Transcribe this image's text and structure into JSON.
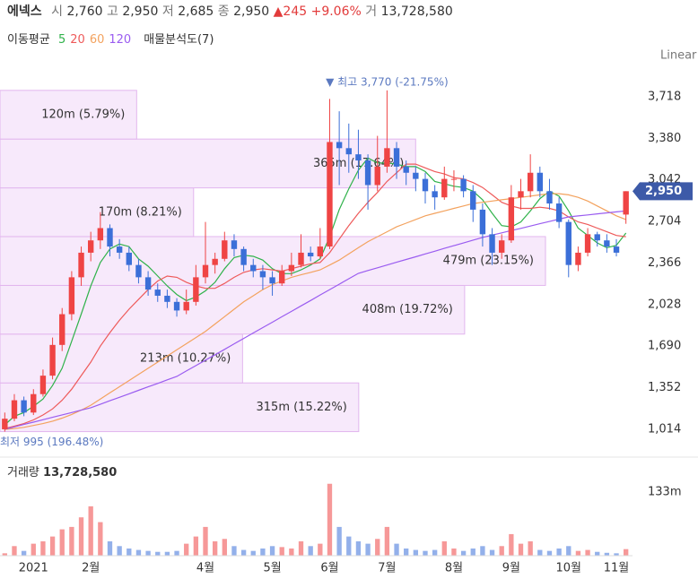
{
  "header": {
    "name": "에넥스",
    "items": [
      {
        "label": "시",
        "value": "2,760"
      },
      {
        "label": "고",
        "value": "2,950"
      },
      {
        "label": "저",
        "value": "2,685"
      },
      {
        "label": "종",
        "value": "2,950"
      }
    ],
    "change": "▲245 +9.06%",
    "volume_label": "거",
    "volume": "13,728,580",
    "scale": "Linear"
  },
  "chart_data": {
    "type": "candlestick",
    "legend_title": "이동평균",
    "up_color": "#ef4444",
    "down_color": "#3b6fd8",
    "categories": [
      null,
      null,
      null,
      "2021",
      null,
      null,
      null,
      null,
      null,
      "2월",
      null,
      null,
      null,
      null,
      null,
      null,
      null,
      null,
      null,
      null,
      null,
      "4월",
      null,
      null,
      null,
      null,
      null,
      null,
      "5월",
      null,
      null,
      null,
      null,
      null,
      "6월",
      null,
      null,
      null,
      null,
      null,
      "7월",
      null,
      null,
      null,
      null,
      null,
      null,
      "8월",
      null,
      null,
      null,
      null,
      null,
      "9월",
      null,
      null,
      null,
      null,
      null,
      "10월",
      null,
      null,
      null,
      null,
      "11월",
      null
    ],
    "open": [
      1014,
      1100,
      1250,
      1150,
      1300,
      1450,
      1700,
      1950,
      2250,
      2450,
      2550,
      2650,
      2500,
      2450,
      2350,
      2250,
      2150,
      2100,
      2050,
      1980,
      2050,
      2250,
      2350,
      2400,
      2550,
      2480,
      2350,
      2300,
      2250,
      2200,
      2300,
      2350,
      2450,
      2420,
      2500,
      3350,
      3300,
      3250,
      3200,
      3000,
      3150,
      3300,
      3150,
      3100,
      3050,
      2950,
      2900,
      3050,
      3050,
      2950,
      2800,
      2600,
      2450,
      2550,
      2900,
      2950,
      3100,
      2950,
      2850,
      2700,
      2350,
      2450,
      2600,
      2550,
      2500,
      2760
    ],
    "high": [
      1150,
      1300,
      1280,
      1340,
      1500,
      1760,
      2000,
      2300,
      2500,
      2620,
      2780,
      2680,
      2560,
      2500,
      2400,
      2300,
      2200,
      2150,
      2080,
      2150,
      2350,
      2700,
      2450,
      2620,
      2600,
      2500,
      2400,
      2350,
      2300,
      2350,
      2450,
      2600,
      2500,
      2650,
      3700,
      3600,
      3500,
      3450,
      3250,
      3400,
      3770,
      3350,
      3200,
      3150,
      3100,
      3000,
      3150,
      3120,
      3080,
      3000,
      2850,
      2650,
      2600,
      3000,
      3050,
      3250,
      3150,
      3050,
      2900,
      2720,
      2500,
      2650,
      2620,
      2600,
      2560,
      2950
    ],
    "low": [
      995,
      1080,
      1120,
      1130,
      1280,
      1420,
      1650,
      1900,
      2180,
      2380,
      2480,
      2420,
      2400,
      2300,
      2200,
      2100,
      2050,
      2000,
      1930,
      1950,
      2020,
      2200,
      2280,
      2380,
      2420,
      2300,
      2250,
      2150,
      2100,
      2180,
      2260,
      2330,
      2380,
      2400,
      2480,
      3000,
      3100,
      3050,
      2800,
      2950,
      3100,
      3050,
      3000,
      2950,
      2850,
      2800,
      2880,
      2950,
      2900,
      2700,
      2500,
      2350,
      2400,
      2530,
      2800,
      2900,
      2900,
      2800,
      2650,
      2250,
      2300,
      2420,
      2500,
      2450,
      2420,
      2685
    ],
    "close": [
      1100,
      1250,
      1150,
      1300,
      1450,
      1700,
      1950,
      2250,
      2450,
      2550,
      2650,
      2500,
      2450,
      2350,
      2250,
      2150,
      2100,
      2050,
      1980,
      2050,
      2250,
      2350,
      2400,
      2550,
      2480,
      2350,
      2300,
      2250,
      2200,
      2300,
      2350,
      2450,
      2420,
      2500,
      3350,
      3300,
      3250,
      3200,
      3000,
      3150,
      3300,
      3150,
      3100,
      3050,
      2950,
      2900,
      3050,
      3050,
      2950,
      2800,
      2600,
      2450,
      2550,
      2900,
      2950,
      3100,
      2950,
      2850,
      2700,
      2350,
      2450,
      2600,
      2550,
      2500,
      2450,
      2950
    ],
    "ylim": [
      830,
      3940
    ],
    "yticks": [
      {
        "value": 1014,
        "label": "1,014"
      },
      {
        "value": 1352,
        "label": "1,352"
      },
      {
        "value": 1690,
        "label": "1,690"
      },
      {
        "value": 2028,
        "label": "2,028"
      },
      {
        "value": 2366,
        "label": "2,366"
      },
      {
        "value": 2704,
        "label": "2,704"
      },
      {
        "value": 3042,
        "label": "3,042"
      },
      {
        "value": 3380,
        "label": "3,380"
      },
      {
        "value": 3718,
        "label": "3,718"
      }
    ],
    "price_tag": "2,950",
    "max_label": "▼ 최고 3,770 (-21.75%)",
    "min_label": "최저 995 (196.48%)",
    "series": [
      {
        "name": "5",
        "color": "#2fb24a",
        "values": [
          1050,
          1120,
          1150,
          1200,
          1260,
          1370,
          1510,
          1730,
          1950,
          2180,
          2370,
          2480,
          2520,
          2500,
          2400,
          2340,
          2260,
          2180,
          2110,
          2060,
          2090,
          2140,
          2210,
          2320,
          2410,
          2430,
          2420,
          2390,
          2320,
          2280,
          2280,
          2310,
          2350,
          2400,
          2580,
          2800,
          2970,
          3120,
          3220,
          3180,
          3180,
          3170,
          3150,
          3150,
          3110,
          3030,
          3010,
          2990,
          2980,
          2950,
          2880,
          2770,
          2670,
          2660,
          2700,
          2790,
          2890,
          2950,
          2910,
          2790,
          2650,
          2590,
          2530,
          2490,
          2510,
          2610
        ]
      },
      {
        "name": "20",
        "color": "#ee5a5a",
        "values": [
          1020,
          1040,
          1060,
          1090,
          1130,
          1180,
          1250,
          1340,
          1450,
          1560,
          1690,
          1800,
          1900,
          1990,
          2070,
          2150,
          2220,
          2260,
          2250,
          2210,
          2180,
          2160,
          2160,
          2200,
          2250,
          2290,
          2310,
          2320,
          2310,
          2300,
          2320,
          2340,
          2360,
          2370,
          2450,
          2560,
          2670,
          2770,
          2860,
          2940,
          3030,
          3100,
          3170,
          3170,
          3140,
          3110,
          3090,
          3060,
          3050,
          3020,
          2980,
          2920,
          2860,
          2830,
          2810,
          2810,
          2820,
          2810,
          2790,
          2740,
          2700,
          2680,
          2650,
          2620,
          2590,
          2580
        ]
      },
      {
        "name": "60",
        "color": "#f3a25e",
        "values": [
          1014,
          1020,
          1030,
          1045,
          1060,
          1080,
          1105,
          1135,
          1170,
          1210,
          1260,
          1310,
          1360,
          1410,
          1460,
          1510,
          1560,
          1610,
          1660,
          1710,
          1760,
          1810,
          1870,
          1930,
          1990,
          2050,
          2100,
          2150,
          2190,
          2220,
          2250,
          2270,
          2290,
          2310,
          2350,
          2390,
          2440,
          2490,
          2540,
          2580,
          2620,
          2660,
          2690,
          2720,
          2750,
          2770,
          2790,
          2810,
          2830,
          2850,
          2860,
          2870,
          2880,
          2890,
          2900,
          2910,
          2920,
          2930,
          2930,
          2920,
          2900,
          2870,
          2830,
          2790,
          2750,
          2720
        ]
      },
      {
        "name": "120",
        "color": "#9a5cf0",
        "values": [
          1014,
          1033,
          1053,
          1072,
          1092,
          1111,
          1131,
          1150,
          1170,
          1189,
          1217,
          1246,
          1274,
          1302,
          1331,
          1359,
          1387,
          1416,
          1444,
          1488,
          1532,
          1576,
          1620,
          1664,
          1709,
          1753,
          1797,
          1841,
          1885,
          1929,
          1973,
          2017,
          2061,
          2106,
          2150,
          2194,
          2238,
          2282,
          2305,
          2327,
          2350,
          2372,
          2395,
          2417,
          2440,
          2462,
          2485,
          2507,
          2529,
          2552,
          2574,
          2593,
          2611,
          2630,
          2648,
          2667,
          2686,
          2704,
          2723,
          2741,
          2749,
          2757,
          2766,
          2774,
          2782,
          2790
        ]
      }
    ],
    "volume_profile": {
      "title": "매물분석도(7)",
      "edges": [
        995,
        1391,
        1788,
        2184,
        2581,
        2977,
        3374,
        3770
      ],
      "values": [
        315,
        213,
        408,
        479,
        170,
        365,
        120
      ],
      "value_labels": [
        "315m (15.22%)",
        "213m (10.27%)",
        "408m (19.72%)",
        "479m (23.15%)",
        "170m (8.21%)",
        "365m (17.64%)",
        "120m (5.79%)"
      ],
      "color": "#f7e9fb",
      "stroke": "#e2b6ee"
    },
    "volume": {
      "type": "bar",
      "title": "거래량",
      "last_label": "13,728,580",
      "ylim": [
        0,
        200
      ],
      "yticks": [
        {
          "value": 133,
          "label": "133m"
        }
      ],
      "values": [
        5,
        20,
        10,
        25,
        30,
        40,
        55,
        60,
        80,
        103,
        70,
        30,
        20,
        15,
        12,
        10,
        8,
        8,
        10,
        25,
        40,
        60,
        30,
        35,
        20,
        12,
        10,
        15,
        20,
        18,
        15,
        30,
        20,
        25,
        150,
        60,
        40,
        30,
        25,
        35,
        60,
        25,
        15,
        12,
        10,
        12,
        30,
        15,
        10,
        15,
        20,
        12,
        20,
        45,
        25,
        30,
        12,
        10,
        15,
        20,
        10,
        12,
        8,
        6,
        5,
        13.73
      ]
    }
  }
}
